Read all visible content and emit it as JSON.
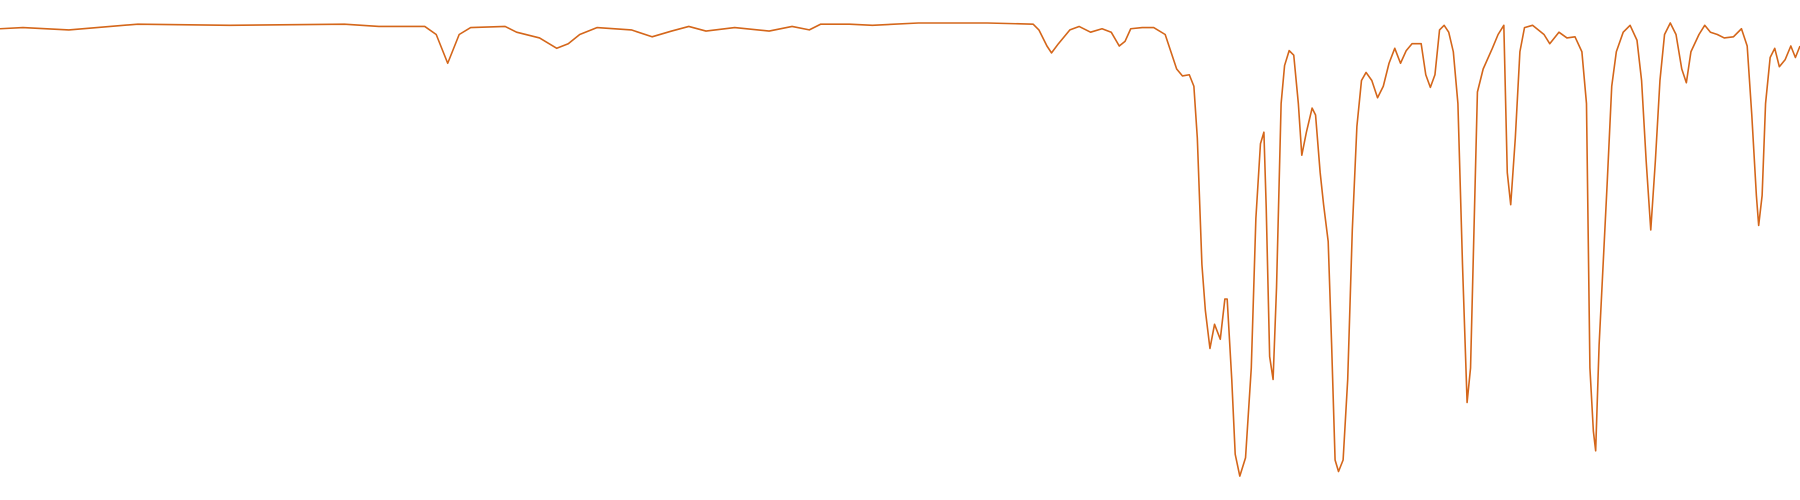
{
  "chart_data": {
    "type": "line",
    "xlim": [
      0,
      1568
    ],
    "ylim": [
      0,
      100
    ],
    "grid": false,
    "series": [
      {
        "color": "#d4661a",
        "x": [
          0,
          20,
          60,
          120,
          200,
          300,
          330,
          370,
          380,
          386,
          390,
          394,
          400,
          410,
          440,
          450,
          470,
          485,
          495,
          505,
          520,
          550,
          568,
          585,
          600,
          615,
          640,
          670,
          690,
          705,
          715,
          740,
          760,
          800,
          860,
          900,
          905,
          912,
          916,
          922,
          932,
          940,
          950,
          960,
          968,
          975,
          980,
          985,
          995,
          1005,
          1015,
          1020,
          1025,
          1030,
          1036,
          1040,
          1043,
          1047,
          1050,
          1054,
          1058,
          1063,
          1067,
          1069,
          1073,
          1076,
          1080,
          1085,
          1090,
          1094,
          1098,
          1101,
          1103,
          1106,
          1109,
          1112,
          1116,
          1119,
          1123,
          1127,
          1131,
          1134,
          1138,
          1143,
          1146,
          1150,
          1153,
          1157,
          1160,
          1163,
          1166,
          1170,
          1174,
          1178,
          1182,
          1186,
          1190,
          1195,
          1200,
          1205,
          1210,
          1215,
          1220,
          1225,
          1230,
          1238,
          1242,
          1246,
          1250,
          1254,
          1258,
          1262,
          1266,
          1270,
          1274,
          1278,
          1281,
          1284,
          1287,
          1292,
          1300,
          1305,
          1310,
          1313,
          1316,
          1320,
          1324,
          1328,
          1335,
          1345,
          1350,
          1358,
          1365,
          1372,
          1378,
          1382,
          1385,
          1388,
          1390,
          1393,
          1396,
          1400,
          1404,
          1408,
          1414,
          1420,
          1426,
          1430,
          1434,
          1438,
          1442,
          1446,
          1450,
          1455,
          1460,
          1465,
          1469,
          1473,
          1480,
          1485,
          1490,
          1496,
          1502,
          1510,
          1517,
          1522,
          1526,
          1530,
          1532,
          1535,
          1538,
          1542,
          1546,
          1550,
          1555,
          1560,
          1564,
          1568
        ],
        "values": [
          98.75,
          99,
          98.5,
          99.75,
          99.5,
          99.75,
          99.25,
          99.25,
          97.5,
          93.75,
          91.25,
          93.75,
          97.5,
          99,
          99.25,
          98,
          96.75,
          94.5,
          95.5,
          97.5,
          99,
          98.5,
          97,
          98.25,
          99.25,
          98.25,
          99,
          98.25,
          99.25,
          98.5,
          99.75,
          99.75,
          99.5,
          100,
          100,
          99.75,
          98.5,
          95,
          93.5,
          95.5,
          98.5,
          99.25,
          98,
          98.75,
          98,
          95,
          96,
          98.75,
          99,
          99,
          97.5,
          93.75,
          90,
          88.5,
          88.75,
          86.25,
          75,
          47.5,
          37.5,
          29.25,
          34.5,
          31.25,
          40,
          40,
          22.5,
          6.25,
          1.5,
          5.5,
          25,
          57.5,
          73.75,
          76.25,
          60,
          27.5,
          22.5,
          42.5,
          82.5,
          90.75,
          94,
          93,
          82.5,
          71.25,
          76.25,
          81.5,
          80,
          67.5,
          60.5,
          52.5,
          30,
          5,
          2.5,
          5,
          22.5,
          55,
          77.5,
          87.5,
          89.25,
          87.5,
          83.75,
          86.25,
          91.25,
          94.5,
          91.25,
          94,
          95.5,
          95.5,
          88.75,
          86,
          88.75,
          98.5,
          99.5,
          98,
          93.75,
          82.5,
          47.5,
          17.5,
          25,
          55,
          85,
          90,
          94.5,
          97.5,
          99.5,
          67.5,
          60.5,
          75,
          93.75,
          99,
          99.5,
          97.5,
          95.5,
          98,
          96.75,
          97,
          93.75,
          82.5,
          25,
          11.25,
          7,
          30,
          45,
          65,
          86.25,
          93.75,
          98,
          99.5,
          96.25,
          87.5,
          70,
          55,
          70,
          87.5,
          97.5,
          100,
          97.5,
          90,
          87,
          93.75,
          97.5,
          99.5,
          98,
          97.5,
          96.75,
          97,
          98.75,
          95,
          80,
          62.5,
          56,
          62.5,
          82.5,
          92.5,
          94.5,
          90.5,
          92,
          95,
          92.5,
          95
        ]
      }
    ]
  }
}
